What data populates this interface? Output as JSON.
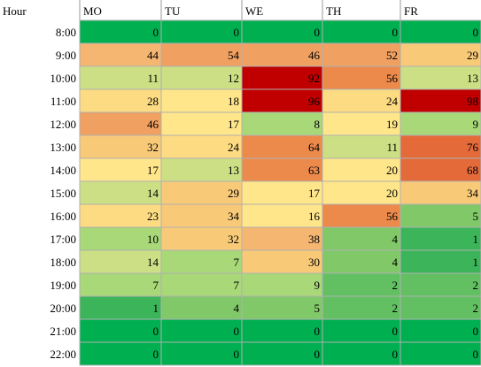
{
  "chart_data": {
    "type": "heatmap",
    "corner_label": "Hour",
    "columns": [
      "MO",
      "TU",
      "WE",
      "TH",
      "FR"
    ],
    "rows": [
      "8:00",
      "9:00",
      "10:00",
      "11:00",
      "12:00",
      "13:00",
      "14:00",
      "15:00",
      "16:00",
      "17:00",
      "18:00",
      "19:00",
      "20:00",
      "21:00",
      "22:00"
    ],
    "values": [
      [
        0,
        0,
        0,
        0,
        0
      ],
      [
        44,
        54,
        46,
        52,
        29
      ],
      [
        11,
        12,
        92,
        56,
        13
      ],
      [
        28,
        18,
        96,
        24,
        98
      ],
      [
        46,
        17,
        8,
        19,
        9
      ],
      [
        32,
        24,
        64,
        11,
        76
      ],
      [
        17,
        13,
        63,
        20,
        68
      ],
      [
        14,
        29,
        17,
        20,
        34
      ],
      [
        23,
        34,
        16,
        56,
        5
      ],
      [
        10,
        32,
        38,
        4,
        1
      ],
      [
        14,
        7,
        30,
        4,
        1
      ],
      [
        7,
        7,
        9,
        2,
        2
      ],
      [
        1,
        4,
        5,
        2,
        2
      ],
      [
        0,
        0,
        0,
        0,
        0
      ],
      [
        0,
        0,
        0,
        0,
        0
      ]
    ]
  },
  "colors": {
    "scale": [
      "#00b050",
      "#3cb55a",
      "#62c062",
      "#80c868",
      "#a8d878",
      "#ccdf84",
      "#ffe68a",
      "#fcdb82",
      "#f8ca78",
      "#f5b672",
      "#f0a060",
      "#ec8a4c",
      "#e46a3a",
      "#d83c24",
      "#c00000"
    ],
    "cell_border": "#b0b0b0",
    "header_divider": "#9a9a9a"
  }
}
